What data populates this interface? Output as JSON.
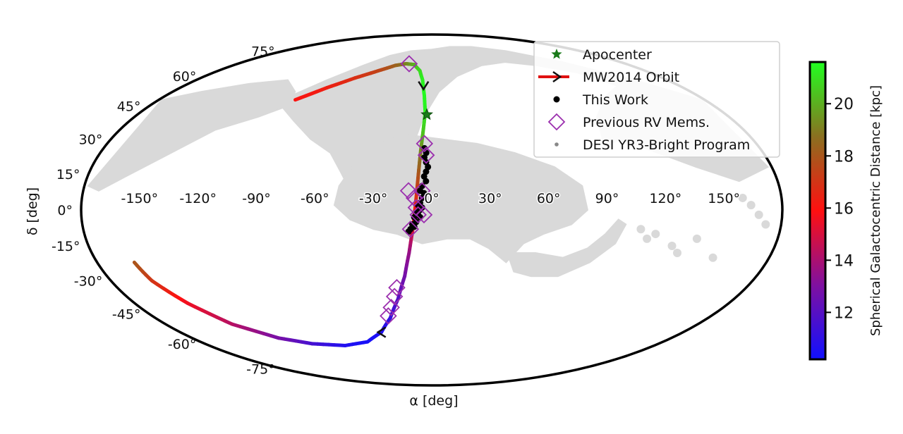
{
  "chart_data": {
    "type": "scatter",
    "projection": "Mollweide",
    "xlabel": "α [deg]",
    "ylabel": "δ [deg]",
    "x_ticks": [
      "-150°",
      "-120°",
      "-90°",
      "-60°",
      "-30°",
      "0°",
      "30°",
      "60°",
      "90°",
      "120°",
      "150°"
    ],
    "x_tick_values": [
      -150,
      -120,
      -90,
      -60,
      -30,
      0,
      30,
      60,
      90,
      120,
      150
    ],
    "y_ticks": [
      "-75°",
      "-60°",
      "-45°",
      "-30°",
      "-15°",
      "0°",
      "15°",
      "30°",
      "45°",
      "60°",
      "75°"
    ],
    "y_tick_values": [
      -75,
      -60,
      -45,
      -30,
      -15,
      0,
      15,
      30,
      45,
      60,
      75
    ],
    "xlim": [
      -180,
      180
    ],
    "ylim": [
      -90,
      90
    ],
    "legend_position": "upper-right",
    "legend": [
      {
        "label": "Apocenter",
        "marker": "star",
        "color": "#1a7a1a"
      },
      {
        "label": "MW2014 Orbit",
        "marker": "line-arrow",
        "color": "#e01010"
      },
      {
        "label": "This Work",
        "marker": "dot",
        "color": "#000000"
      },
      {
        "label": "Previous RV Mems.",
        "marker": "open-diamond",
        "color": "#9b2fae"
      },
      {
        "label": "DESI YR3-Bright Program",
        "marker": "small-dot",
        "color": "#888888"
      }
    ],
    "colorbar": {
      "label": "Spherical Galactocentric Distance [kpc]",
      "range": [
        10.2,
        21.6
      ],
      "ticks": [
        12,
        14,
        16,
        18,
        20
      ],
      "tick_labels": [
        "12",
        "14",
        "16",
        "18",
        "20"
      ],
      "colormap": [
        "#1010ff",
        "#8010a0",
        "#ff1010",
        "#8a7020",
        "#20ff20"
      ]
    },
    "orbit": {
      "name": "MW2014 Orbit",
      "upper_arc": [
        {
          "ra": -90,
          "dec": 48,
          "dist": 16.0
        },
        {
          "ra": -75,
          "dec": 54,
          "dist": 16.3
        },
        {
          "ra": -60,
          "dec": 59,
          "dist": 16.8
        },
        {
          "ra": -45,
          "dec": 63,
          "dist": 17.4
        },
        {
          "ra": -33,
          "dec": 66,
          "dist": 18.2
        },
        {
          "ra": -24,
          "dec": 67,
          "dist": 19.0
        },
        {
          "ra": -16,
          "dec": 66.5,
          "dist": 20.0
        },
        {
          "ra": -10,
          "dec": 63,
          "dist": 20.8
        },
        {
          "ra": -7,
          "dec": 58,
          "dist": 21.3
        },
        {
          "ra": -5,
          "dec": 50,
          "dist": 21.5
        },
        {
          "ra": -4,
          "dec": 42,
          "dist": 21.3
        },
        {
          "ra": -5,
          "dec": 33,
          "dist": 20.5
        },
        {
          "ra": -6,
          "dec": 25,
          "dist": 19.3
        },
        {
          "ra": -7,
          "dec": 15,
          "dist": 18.0
        },
        {
          "ra": -8,
          "dec": 5,
          "dist": 16.8
        },
        {
          "ra": -9,
          "dec": -3,
          "dist": 15.5
        },
        {
          "ra": -10,
          "dec": -9,
          "dist": 15.0
        }
      ],
      "lower_arc": [
        {
          "ra": -10,
          "dec": -9,
          "dist": 15.0
        },
        {
          "ra": -12,
          "dec": -18,
          "dist": 13.6
        },
        {
          "ra": -15,
          "dec": -28,
          "dist": 12.8
        },
        {
          "ra": -20,
          "dec": -38,
          "dist": 12.0
        },
        {
          "ra": -27,
          "dec": -47,
          "dist": 11.2
        },
        {
          "ra": -36,
          "dec": -54,
          "dist": 10.6
        },
        {
          "ra": -50,
          "dec": -59,
          "dist": 10.4
        },
        {
          "ra": -70,
          "dec": -61,
          "dist": 10.6
        },
        {
          "ra": -95,
          "dec": -60,
          "dist": 11.5
        },
        {
          "ra": -115,
          "dec": -57,
          "dist": 12.8
        },
        {
          "ra": -135,
          "dec": -50,
          "dist": 14.2
        },
        {
          "ra": -148,
          "dec": -40,
          "dist": 15.5
        },
        {
          "ra": -157,
          "dec": -30,
          "dist": 17.0
        },
        {
          "ra": -160,
          "dec": -22,
          "dist": 18.0
        }
      ],
      "arrows": [
        {
          "ra": -6,
          "dec": 55,
          "direction": "down"
        },
        {
          "ra": -36,
          "dec": -54,
          "direction": "left"
        }
      ]
    },
    "apocenter": {
      "ra": -3,
      "dec": 41
    },
    "this_work": [
      {
        "ra": -4,
        "dec": 26
      },
      {
        "ra": -3,
        "dec": 24
      },
      {
        "ra": -4,
        "dec": 22
      },
      {
        "ra": -3,
        "dec": 20
      },
      {
        "ra": -2,
        "dec": 18
      },
      {
        "ra": -3,
        "dec": 16
      },
      {
        "ra": -4,
        "dec": 14
      },
      {
        "ra": -3,
        "dec": 12
      },
      {
        "ra": -5,
        "dec": 10
      },
      {
        "ra": -6,
        "dec": 8
      },
      {
        "ra": -4,
        "dec": 7
      },
      {
        "ra": -5,
        "dec": 5
      },
      {
        "ra": -6,
        "dec": 3
      },
      {
        "ra": -7,
        "dec": 2
      },
      {
        "ra": -5,
        "dec": 1
      },
      {
        "ra": -6,
        "dec": 0
      },
      {
        "ra": -8,
        "dec": -1
      },
      {
        "ra": -7,
        "dec": -2
      },
      {
        "ra": -9,
        "dec": -3
      },
      {
        "ra": -6,
        "dec": -3
      },
      {
        "ra": -8,
        "dec": -5
      },
      {
        "ra": -10,
        "dec": -6
      },
      {
        "ra": -11,
        "dec": -8
      },
      {
        "ra": -9,
        "dec": -7
      },
      {
        "ra": -12,
        "dec": -9
      }
    ],
    "previous_rv_members": [
      {
        "ra": -21,
        "dec": 67
      },
      {
        "ra": -4,
        "dec": 28
      },
      {
        "ra": -3,
        "dec": 23
      },
      {
        "ra": -12,
        "dec": 8
      },
      {
        "ra": -5,
        "dec": 8
      },
      {
        "ra": -9,
        "dec": 5
      },
      {
        "ra": -8,
        "dec": 1
      },
      {
        "ra": -7,
        "dec": -2
      },
      {
        "ra": -4,
        "dec": -2
      },
      {
        "ra": -11,
        "dec": -8
      },
      {
        "ra": -20,
        "dec": -33
      },
      {
        "ra": -22,
        "dec": -37
      },
      {
        "ra": -25,
        "dec": -42
      },
      {
        "ra": -28,
        "dec": -46
      }
    ],
    "desi_footprint": {
      "north_cap": [
        [
          -95,
          50
        ],
        [
          -80,
          58
        ],
        [
          -62,
          66
        ],
        [
          -45,
          72
        ],
        [
          -25,
          75
        ],
        [
          0,
          76
        ],
        [
          25,
          78
        ],
        [
          55,
          78
        ],
        [
          90,
          75
        ],
        [
          125,
          68
        ],
        [
          155,
          58
        ],
        [
          178,
          48
        ],
        [
          178,
          18
        ],
        [
          160,
          12
        ],
        [
          140,
          18
        ],
        [
          120,
          25
        ],
        [
          105,
          30
        ],
        [
          95,
          26
        ],
        [
          100,
          40
        ],
        [
          118,
          50
        ],
        [
          135,
          55
        ],
        [
          120,
          62
        ],
        [
          95,
          66
        ],
        [
          70,
          68
        ],
        [
          45,
          66
        ],
        [
          20,
          60
        ],
        [
          5,
          52
        ],
        [
          -5,
          40
        ],
        [
          -10,
          28
        ],
        [
          -14,
          18
        ],
        [
          -20,
          10
        ],
        [
          -30,
          6
        ],
        [
          -42,
          8
        ],
        [
          -48,
          16
        ],
        [
          -55,
          24
        ],
        [
          -68,
          30
        ],
        [
          -82,
          38
        ],
        [
          -98,
          46
        ]
      ],
      "ngc_left": [
        [
          -178,
          48
        ],
        [
          -160,
          52
        ],
        [
          -135,
          56
        ],
        [
          -110,
          58
        ],
        [
          -95,
          52
        ],
        [
          -92,
          45
        ],
        [
          -105,
          40
        ],
        [
          -125,
          34
        ],
        [
          -145,
          22
        ],
        [
          -160,
          14
        ],
        [
          -172,
          8
        ],
        [
          -178,
          10
        ]
      ],
      "south_blob": [
        [
          -30,
          28
        ],
        [
          -15,
          32
        ],
        [
          5,
          30
        ],
        [
          25,
          28
        ],
        [
          45,
          24
        ],
        [
          65,
          18
        ],
        [
          78,
          10
        ],
        [
          80,
          0
        ],
        [
          72,
          -6
        ],
        [
          58,
          -10
        ],
        [
          48,
          -14
        ],
        [
          40,
          -22
        ],
        [
          30,
          -16
        ],
        [
          20,
          -12
        ],
        [
          8,
          -12
        ],
        [
          -5,
          -14
        ],
        [
          -18,
          -10
        ],
        [
          -30,
          -8
        ],
        [
          -42,
          -4
        ],
        [
          -50,
          2
        ],
        [
          -48,
          10
        ],
        [
          -42,
          18
        ]
      ],
      "south_tail": [
        [
          40,
          -18
        ],
        [
          55,
          -18
        ],
        [
          70,
          -20
        ],
        [
          82,
          -16
        ],
        [
          90,
          -10
        ],
        [
          96,
          -4
        ],
        [
          100,
          -6
        ],
        [
          96,
          -14
        ],
        [
          85,
          -22
        ],
        [
          70,
          -28
        ],
        [
          55,
          -28
        ],
        [
          45,
          -26
        ]
      ],
      "scattered_tiles": [
        {
          "ra": 160,
          "dec": 5
        },
        {
          "ra": 164,
          "dec": 2
        },
        {
          "ra": 168,
          "dec": -2
        },
        {
          "ra": 172,
          "dec": -6
        },
        {
          "ra": 108,
          "dec": -8
        },
        {
          "ra": 112,
          "dec": -12
        },
        {
          "ra": 116,
          "dec": -10
        },
        {
          "ra": 126,
          "dec": -15
        },
        {
          "ra": 130,
          "dec": -18
        },
        {
          "ra": 138,
          "dec": -12
        },
        {
          "ra": 150,
          "dec": -20
        }
      ]
    }
  }
}
